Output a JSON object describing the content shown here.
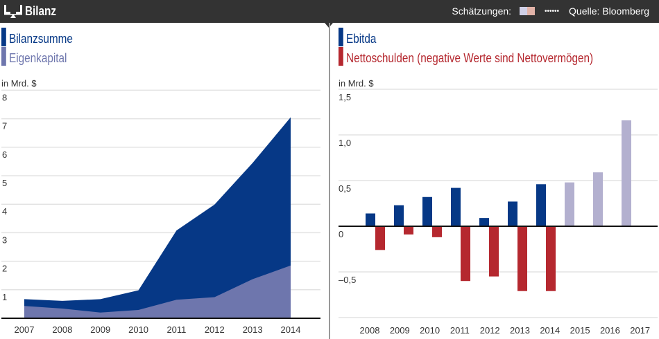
{
  "header": {
    "title": "Bilanz",
    "icon": "balance-scale-icon",
    "estimates_label": "Schätzungen:",
    "estimate_colors": [
      "#cfcfe6",
      "#e2b3a8"
    ],
    "dots": "••••••",
    "source": "Quelle: Bloomberg"
  },
  "colors": {
    "bilanzsumme": "#063886",
    "eigenkapital": "#6e76ad",
    "ebitda": "#063886",
    "nettoschulden": "#b5282f",
    "estimate": "#b3b0cf"
  },
  "chart_data": [
    {
      "type": "area",
      "ylabel": "in Mrd. $",
      "ylim": [
        0,
        8
      ],
      "yticks": [
        "8",
        "7",
        "6",
        "5",
        "4",
        "3",
        "2",
        "1"
      ],
      "grid": true,
      "legend_placement": "top-left",
      "categories": [
        "2007",
        "2008",
        "2009",
        "2010",
        "2011",
        "2012",
        "2013",
        "2014"
      ],
      "series": [
        {
          "name": "Bilanzsumme",
          "values": [
            0.67,
            0.61,
            0.67,
            0.98,
            3.08,
            3.99,
            5.45,
            7.05
          ]
        },
        {
          "name": "Eigenkapital",
          "values": [
            0.43,
            0.34,
            0.2,
            0.29,
            0.65,
            0.74,
            1.37,
            1.85
          ]
        }
      ]
    },
    {
      "type": "bar",
      "ylabel": "in Mrd. $",
      "ylim": [
        -1.0,
        1.5
      ],
      "yticks": [
        {
          "v": 1.5,
          "label": "1,5"
        },
        {
          "v": 1.0,
          "label": "1,0"
        },
        {
          "v": 0.5,
          "label": "0,5"
        },
        {
          "v": 0,
          "label": "0"
        },
        {
          "v": -0.5,
          "label": "–0,5"
        }
      ],
      "grid": true,
      "legend_placement": "top-left",
      "categories": [
        "2008",
        "2009",
        "2010",
        "2011",
        "2012",
        "2013",
        "2014",
        "2015",
        "2016",
        "2017"
      ],
      "estimate_from": "2015",
      "series": [
        {
          "name": "Ebitda",
          "values": [
            0.14,
            0.23,
            0.32,
            0.42,
            0.09,
            0.27,
            0.46,
            0.48,
            0.59,
            1.16
          ]
        },
        {
          "name": "Nettoschulden (negative Werte sind Nettovermögen)",
          "values": [
            -0.26,
            -0.09,
            -0.12,
            -0.6,
            -0.55,
            -0.71,
            -0.71,
            null,
            null,
            null
          ]
        }
      ]
    }
  ]
}
